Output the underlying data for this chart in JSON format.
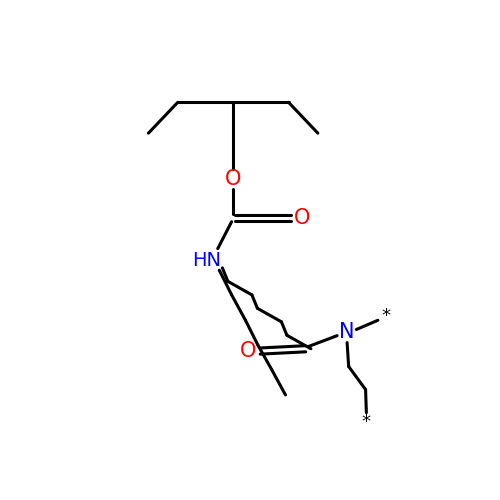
{
  "background_color": "#ffffff",
  "bond_color": "#000000",
  "bond_width": 2.2,
  "figsize": [
    5.0,
    5.0
  ],
  "dpi": 100,
  "xlim": [
    0,
    500
  ],
  "ylim": [
    0,
    500
  ]
}
